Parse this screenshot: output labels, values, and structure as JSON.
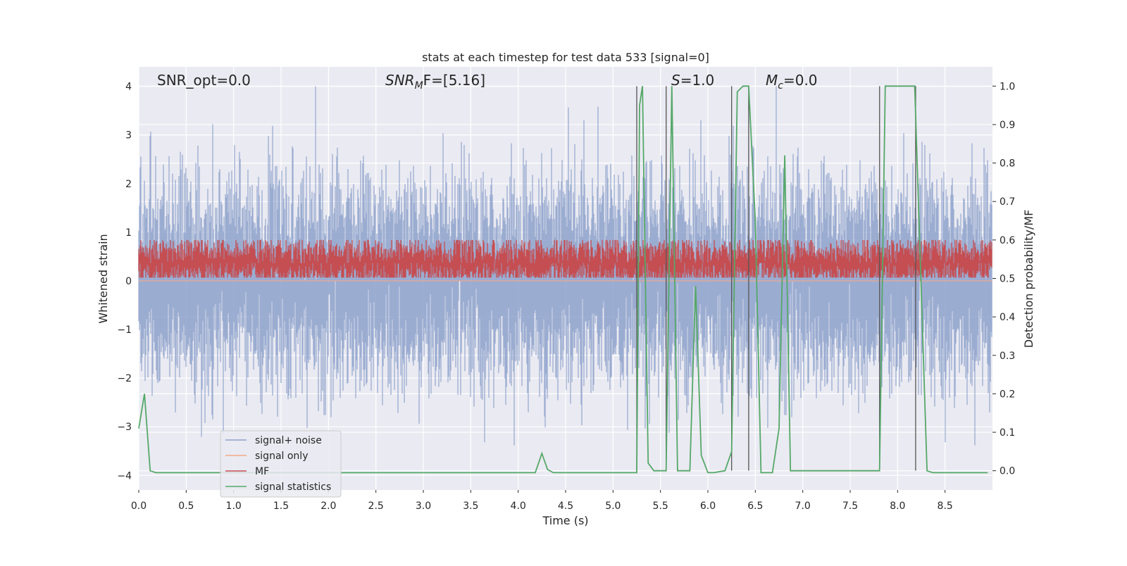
{
  "chart_data": {
    "type": "line",
    "title": "stats at each timestep for test data 533 [signal=0]",
    "xlabel": "Time (s)",
    "ylabel_left": "Whitened strain",
    "ylabel_right": "Detection probability/MF",
    "xlim": [
      0.0,
      9.0
    ],
    "ylim_left": [
      -4.3,
      4.4
    ],
    "ylim_right": [
      -0.05,
      1.05
    ],
    "x_ticks": [
      0.0,
      0.5,
      1.0,
      1.5,
      2.0,
      2.5,
      3.0,
      3.5,
      4.0,
      4.5,
      5.0,
      5.5,
      6.0,
      6.5,
      7.0,
      7.5,
      8.0,
      8.5
    ],
    "x_tick_labels": [
      "0.0",
      "0.5",
      "1.0",
      "1.5",
      "2.0",
      "2.5",
      "3.0",
      "3.5",
      "4.0",
      "4.5",
      "5.0",
      "5.5",
      "6.0",
      "6.5",
      "7.0",
      "7.5",
      "8.0",
      "8.5"
    ],
    "y_left_ticks": [
      -4,
      -3,
      -2,
      -1,
      0,
      1,
      2,
      3,
      4
    ],
    "y_left_tick_labels": [
      "−4",
      "−3",
      "−2",
      "−1",
      "0",
      "1",
      "2",
      "3",
      "4"
    ],
    "y_right_ticks": [
      0.0,
      0.1,
      0.2,
      0.3,
      0.4,
      0.5,
      0.6,
      0.7,
      0.8,
      0.9,
      1.0
    ],
    "y_right_tick_labels": [
      "0.0",
      "0.1",
      "0.2",
      "0.3",
      "0.4",
      "0.5",
      "0.6",
      "0.7",
      "0.8",
      "0.9",
      "1.0"
    ],
    "grid": true,
    "legend_position": "lower-left",
    "annotations": {
      "snr_opt": "SNR_opt=0.0",
      "snr_mf_main": "SNR",
      "snr_mf_sub": "M",
      "snr_mf_rest": "F=[5.16]",
      "s_main": "S",
      "s_rest": "=1.0",
      "mc_main": "M",
      "mc_sub": "c",
      "mc_rest": "=0.0"
    },
    "colors": {
      "background": "#eaeaf2",
      "grid": "#ffffff",
      "noise": "#8da1cb",
      "signal_only": "#f2a98a",
      "mf": "#c44e52",
      "stats": "#55a868",
      "vlines": "#555555"
    },
    "series": [
      {
        "name": "signal+ noise",
        "axis": "left",
        "style": "dense noise, approx. gaussian, sigma ~1.0, peaks to ~±4",
        "y_mean": 0.0,
        "y_sigma": 1.0
      },
      {
        "name": "signal only",
        "axis": "left",
        "x": [
          0.0,
          9.0
        ],
        "y": [
          0.0,
          0.0
        ]
      },
      {
        "name": "MF",
        "axis": "right",
        "style": "dense trace around 0.54 on the right axis",
        "y_mean": 0.54,
        "y_spread": 0.03
      },
      {
        "name": "signal statistics",
        "axis": "right",
        "x": [
          0.0,
          0.06,
          0.12,
          0.18,
          4.18,
          4.25,
          4.31,
          4.37,
          5.25,
          5.28,
          5.31,
          5.37,
          5.43,
          5.56,
          5.62,
          5.68,
          5.81,
          5.87,
          5.93,
          6.0,
          6.06,
          6.18,
          6.25,
          6.31,
          6.37,
          6.43,
          6.5,
          6.56,
          6.68,
          6.75,
          6.81,
          6.87,
          7.81,
          7.87,
          8.18,
          8.31,
          8.37,
          8.95
        ],
        "y": [
          0.11,
          0.2,
          0.0,
          -0.005,
          -0.005,
          0.045,
          0.003,
          -0.005,
          -0.005,
          0.95,
          1.0,
          0.02,
          0.0,
          0.0,
          1.0,
          0.0,
          0.0,
          0.48,
          0.04,
          -0.005,
          -0.005,
          0.0,
          0.05,
          0.985,
          1.0,
          1.0,
          0.65,
          -0.005,
          -0.005,
          0.11,
          0.82,
          0.0,
          0.0,
          1.0,
          1.0,
          0.0,
          -0.005,
          -0.005
        ]
      }
    ],
    "vertical_lines_x": [
      5.25,
      5.56,
      6.25,
      6.43,
      7.81,
      8.19
    ],
    "legend": [
      "signal+ noise",
      "signal only",
      "MF",
      "signal statistics"
    ]
  }
}
